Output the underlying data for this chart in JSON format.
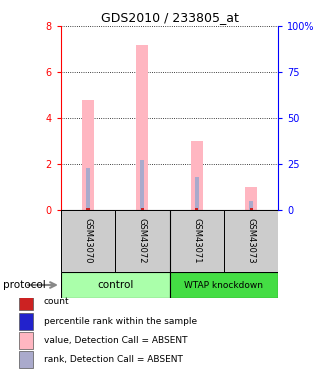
{
  "title": "GDS2010 / 233805_at",
  "samples": [
    "GSM43070",
    "GSM43072",
    "GSM43071",
    "GSM43073"
  ],
  "groups": [
    "control",
    "control",
    "WTAP knockdown",
    "WTAP knockdown"
  ],
  "bar_values": [
    4.8,
    7.2,
    3.0,
    1.0
  ],
  "rank_values_pct": [
    23,
    27,
    18,
    5
  ],
  "count_values": [
    0.08,
    0.08,
    0.08,
    0.08
  ],
  "bar_color": "#FFB6C1",
  "rank_color": "#AAAACC",
  "count_color": "#CC2222",
  "ylim_left": [
    0,
    8
  ],
  "ylim_right": [
    0,
    100
  ],
  "yticks_left": [
    0,
    2,
    4,
    6,
    8
  ],
  "yticks_right": [
    0,
    25,
    50,
    75,
    100
  ],
  "ytick_labels_right": [
    "0",
    "25",
    "50",
    "75",
    "100%"
  ],
  "control_color": "#AAFFAA",
  "wtap_color": "#44DD44",
  "legend_items": [
    {
      "label": "count",
      "color": "#CC2222"
    },
    {
      "label": "percentile rank within the sample",
      "color": "#2222CC"
    },
    {
      "label": "value, Detection Call = ABSENT",
      "color": "#FFB6C1"
    },
    {
      "label": "rank, Detection Call = ABSENT",
      "color": "#AAAACC"
    }
  ]
}
